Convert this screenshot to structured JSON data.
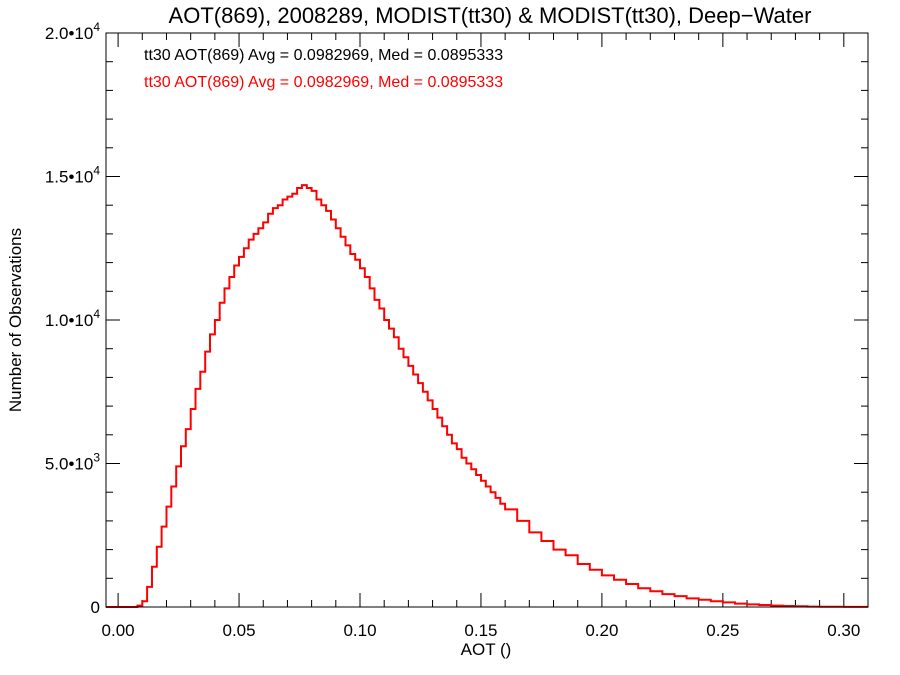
{
  "chart_data": {
    "type": "histogram",
    "title": "AOT(869), 2008289, MODIST(tt30) & MODIST(tt30), Deep−Water",
    "xlabel": "AOT ()",
    "ylabel": "Number of Observations",
    "xlim": [
      -0.005,
      0.31
    ],
    "ylim": [
      0,
      20000
    ],
    "x_ticks": [
      {
        "value": 0.0,
        "label": "0.00"
      },
      {
        "value": 0.05,
        "label": "0.05"
      },
      {
        "value": 0.1,
        "label": "0.10"
      },
      {
        "value": 0.15,
        "label": "0.15"
      },
      {
        "value": 0.2,
        "label": "0.20"
      },
      {
        "value": 0.25,
        "label": "0.25"
      },
      {
        "value": 0.3,
        "label": "0.30"
      }
    ],
    "y_ticks": [
      {
        "value": 0,
        "mantissa": "0",
        "exponent": ""
      },
      {
        "value": 5000,
        "mantissa": "5.0",
        "exponent": "3"
      },
      {
        "value": 10000,
        "mantissa": "1.0",
        "exponent": "4"
      },
      {
        "value": 15000,
        "mantissa": "1.5",
        "exponent": "4"
      },
      {
        "value": 20000,
        "mantissa": "2.0",
        "exponent": "4"
      }
    ],
    "legend": [
      {
        "text": "tt30 AOT(869) Avg = 0.0982969, Med = 0.0895333",
        "color": "#000000"
      },
      {
        "text": "tt30 AOT(869) Avg = 0.0982969, Med = 0.0895333",
        "color": "#ff0000"
      }
    ],
    "series": [
      {
        "color": "#ff0000",
        "x": [
          -0.005,
          0.0,
          0.005,
          0.008,
          0.01,
          0.012,
          0.014,
          0.016,
          0.018,
          0.02,
          0.022,
          0.024,
          0.026,
          0.028,
          0.03,
          0.032,
          0.034,
          0.036,
          0.038,
          0.04,
          0.042,
          0.044,
          0.046,
          0.048,
          0.05,
          0.052,
          0.054,
          0.056,
          0.058,
          0.06,
          0.062,
          0.064,
          0.066,
          0.068,
          0.07,
          0.072,
          0.074,
          0.076,
          0.078,
          0.08,
          0.082,
          0.084,
          0.086,
          0.088,
          0.09,
          0.092,
          0.094,
          0.096,
          0.098,
          0.1,
          0.102,
          0.104,
          0.106,
          0.108,
          0.11,
          0.112,
          0.114,
          0.116,
          0.118,
          0.12,
          0.122,
          0.124,
          0.126,
          0.128,
          0.13,
          0.132,
          0.134,
          0.136,
          0.138,
          0.14,
          0.142,
          0.144,
          0.146,
          0.148,
          0.15,
          0.152,
          0.154,
          0.156,
          0.158,
          0.16,
          0.165,
          0.17,
          0.175,
          0.18,
          0.185,
          0.19,
          0.195,
          0.2,
          0.205,
          0.21,
          0.215,
          0.22,
          0.225,
          0.23,
          0.235,
          0.24,
          0.245,
          0.25,
          0.255,
          0.26,
          0.265,
          0.27,
          0.275,
          0.28,
          0.285,
          0.29,
          0.295,
          0.3,
          0.305,
          0.31
        ],
        "y": [
          0,
          0,
          0,
          50,
          200,
          700,
          1400,
          2100,
          2800,
          3500,
          4200,
          4900,
          5600,
          6200,
          6900,
          7600,
          8200,
          8900,
          9500,
          10000,
          10600,
          11100,
          11500,
          11900,
          12200,
          12500,
          12800,
          13000,
          13200,
          13400,
          13700,
          13900,
          14000,
          14200,
          14300,
          14400,
          14600,
          14700,
          14600,
          14500,
          14200,
          14000,
          13800,
          13500,
          13200,
          12900,
          12600,
          12300,
          12100,
          11800,
          11500,
          11100,
          10700,
          10400,
          10000,
          9700,
          9400,
          9000,
          8700,
          8400,
          8100,
          7800,
          7500,
          7200,
          6900,
          6600,
          6300,
          6000,
          5700,
          5500,
          5200,
          5000,
          4800,
          4600,
          4400,
          4200,
          4000,
          3800,
          3600,
          3400,
          3000,
          2600,
          2300,
          2000,
          1800,
          1500,
          1300,
          1100,
          950,
          800,
          650,
          550,
          450,
          380,
          300,
          250,
          200,
          160,
          120,
          90,
          70,
          50,
          35,
          25,
          15,
          10,
          8,
          5,
          3,
          2
        ]
      }
    ]
  }
}
